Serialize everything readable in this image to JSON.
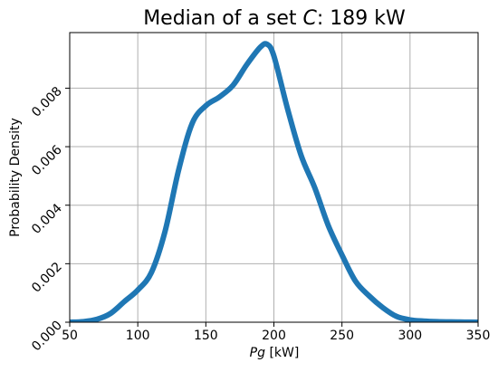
{
  "chart_data": {
    "type": "line",
    "title_main": "Median of a set ",
    "title_var": "C",
    "title_rest": ": 189 kW",
    "xlabel_var": "Pg",
    "xlabel_unit": " [kW]",
    "ylabel": "Probability Density",
    "xlim": [
      50,
      350
    ],
    "ylim": [
      0,
      0.0099
    ],
    "x_ticks": [
      "50",
      "100",
      "150",
      "200",
      "250",
      "300",
      "350"
    ],
    "y_ticks": [
      "0.000",
      "0.002",
      "0.004",
      "0.006",
      "0.008"
    ],
    "grid": true,
    "line_color": "#1f77b4",
    "series": [
      {
        "x": [
          50,
          60,
          70,
          80,
          90,
          100,
          110,
          120,
          130,
          140,
          150,
          160,
          170,
          180,
          190,
          195,
          200,
          210,
          220,
          230,
          240,
          250,
          260,
          270,
          280,
          290,
          300,
          310,
          320,
          330,
          340,
          350
        ],
        "y": [
          0.0,
          2e-05,
          0.0001,
          0.0003,
          0.0007,
          0.0011,
          0.0017,
          0.0031,
          0.0052,
          0.0068,
          0.0074,
          0.0077,
          0.0081,
          0.0088,
          0.0094,
          0.0095,
          0.0091,
          0.0073,
          0.0057,
          0.0046,
          0.0033,
          0.0023,
          0.0014,
          0.0009,
          0.0005,
          0.0002,
          8e-05,
          4e-05,
          2e-05,
          1e-05,
          5e-06,
          0.0
        ]
      }
    ]
  }
}
